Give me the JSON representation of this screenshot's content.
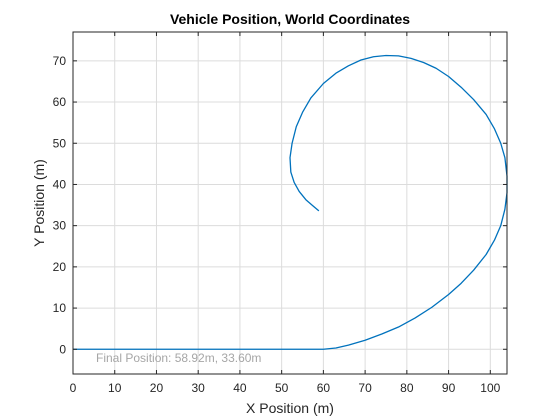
{
  "chart_data": {
    "type": "line",
    "title": "Vehicle Position, World Coordinates",
    "xlabel": "X Position (m)",
    "ylabel": "Y Position (m)",
    "xlim": [
      0,
      104
    ],
    "ylim": [
      -6,
      77
    ],
    "xticks": [
      0,
      10,
      20,
      30,
      40,
      50,
      60,
      70,
      80,
      90,
      100
    ],
    "yticks": [
      0,
      10,
      20,
      30,
      40,
      50,
      60,
      70
    ],
    "grid": true,
    "line_color": "#0072bd",
    "annotation": "Final Position: 58.92m, 33.60m",
    "series": [
      {
        "x": [
          0,
          10,
          20,
          30,
          40,
          50,
          60,
          63,
          66,
          70,
          74,
          78,
          82,
          86,
          90,
          93,
          96,
          99,
          101,
          102.5,
          103.5,
          104,
          104,
          103.5,
          102.5,
          101,
          99,
          96,
          93,
          90,
          87,
          84,
          81,
          78,
          75,
          72,
          69,
          66,
          63,
          60,
          57,
          55,
          53.5,
          52.5,
          52,
          52.2,
          53,
          54.2,
          55.8,
          57.5,
          58.92
        ],
        "y": [
          0,
          0,
          0,
          0,
          0,
          0,
          0,
          0.3,
          1.0,
          2.2,
          3.7,
          5.4,
          7.6,
          10.2,
          13.3,
          16.0,
          19.2,
          23.0,
          26.5,
          30.0,
          34.0,
          38.0,
          42.0,
          46.5,
          50.0,
          53.5,
          57.0,
          60.6,
          63.6,
          66.2,
          68.2,
          69.6,
          70.6,
          71.2,
          71.3,
          71.0,
          70.2,
          68.8,
          67.0,
          64.5,
          61.0,
          57.5,
          54.0,
          50.0,
          46.5,
          43.0,
          40.5,
          38.3,
          36.3,
          34.8,
          33.6
        ]
      }
    ]
  }
}
